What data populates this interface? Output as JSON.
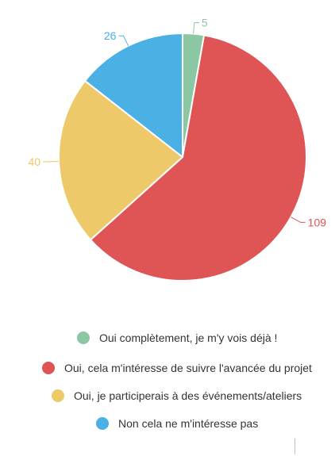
{
  "chart_data": {
    "type": "pie",
    "title": "",
    "start_angle_deg": 0,
    "direction": "clockwise",
    "slices": [
      {
        "label": "Oui complètement, je m'y vois déjà !",
        "value": 5,
        "value_label": "5",
        "color": "#8cc7a4"
      },
      {
        "label": "Oui, cela m'intéresse de suivre l'avancée du projet",
        "value": 109,
        "value_label": "109",
        "color": "#df5556"
      },
      {
        "label": "Oui, je participerais à des événements/ateliers",
        "value": 40,
        "value_label": "40",
        "color": "#edc96a"
      },
      {
        "label": "Non cela ne m'intéresse pas",
        "value": 26,
        "value_label": "26",
        "color": "#4bb0e4"
      }
    ],
    "legend_position": "bottom"
  }
}
